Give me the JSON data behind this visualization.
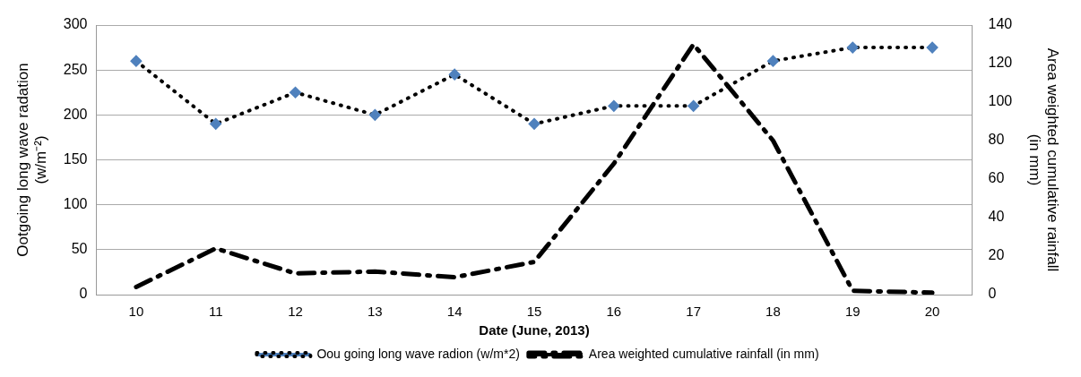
{
  "chart_data": {
    "type": "line",
    "categories": [
      "10",
      "11",
      "12",
      "13",
      "14",
      "15",
      "16",
      "17",
      "18",
      "19",
      "20"
    ],
    "xlabel": "Date (June, 2013)",
    "ylabel": "Ootgoing long wave radation\n(w/m⁻²)",
    "y2label": "Area weighted cumulative rainfall\n(in mm)",
    "series": [
      {
        "name": "Oou going long wave radion (w/m*2)",
        "color": "#4f81bd",
        "values": [
          260,
          190,
          225,
          200,
          245,
          190,
          210,
          210,
          260,
          275,
          275
        ],
        "marker": "diamond",
        "line_style": "dotted"
      },
      {
        "name": "Area weighted cumulative rainfall (in mm)",
        "color": "#000000",
        "values": [
          4,
          24,
          11,
          12,
          9,
          17,
          68,
          130,
          80,
          2,
          1
        ],
        "axis": "y2",
        "marker": "none",
        "line_style": "dashed"
      }
    ],
    "ylim": [
      0,
      300
    ],
    "yticks": [
      0,
      50,
      100,
      150,
      200,
      250,
      300
    ],
    "y2lim": [
      0,
      140
    ],
    "y2ticks": [
      0,
      20,
      40,
      60,
      80,
      100,
      120,
      140
    ],
    "grid": "y",
    "legend": "bottom"
  }
}
